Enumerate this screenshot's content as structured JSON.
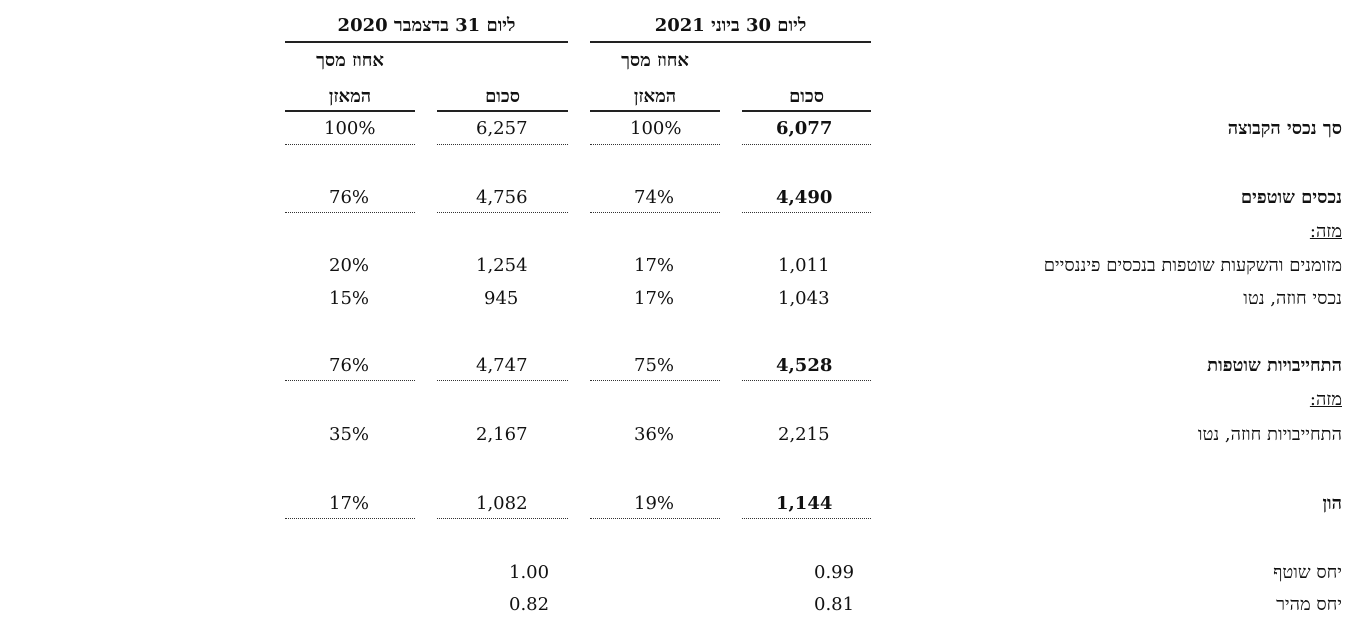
{
  "headers": {
    "period_2021": "ליום 30 ביוני 2021",
    "period_2020": "ליום 31 בדצמבר 2020",
    "amount": "סכום",
    "percent_line1": "אחוז מסך",
    "percent_line2": "המאזן"
  },
  "rows": {
    "total_assets": {
      "label": "סך נכסי הקבוצה",
      "v2021": "6,077",
      "p2021": "100%",
      "v2020": "6,257",
      "p2020": "100%"
    },
    "current_assets": {
      "label": "נכסים שוטפים",
      "v2021": "4,490",
      "p2021": "74%",
      "v2020": "4,756",
      "p2020": "76%"
    },
    "of_which_1": {
      "label": "מזה:"
    },
    "cash": {
      "label": "מזומנים והשקעות שוטפות בנכסים פיננסיים",
      "v2021": "1,011",
      "p2021": "17%",
      "v2020": "1,254",
      "p2020": "20%"
    },
    "contract_assets": {
      "label": "נכסי חוזה, נטו",
      "v2021": "1,043",
      "p2021": "17%",
      "v2020": "945",
      "p2020": "15%"
    },
    "current_liabilities": {
      "label": "התחייבויות שוטפות",
      "v2021": "4,528",
      "p2021": "75%",
      "v2020": "4,747",
      "p2020": "76%"
    },
    "of_which_2": {
      "label": "מזה:"
    },
    "contract_liabilities": {
      "label": "התחייבויות חוזה, נטו",
      "v2021": "2,215",
      "p2021": "36%",
      "v2020": "2,167",
      "p2020": "35%"
    },
    "equity": {
      "label": "הון",
      "v2021": "1,144",
      "p2021": "19%",
      "v2020": "1,082",
      "p2020": "17%"
    },
    "current_ratio": {
      "label": "יחס שוטף",
      "v2021": "0.99",
      "v2020": "1.00"
    },
    "quick_ratio": {
      "label": "יחס מהיר",
      "v2021": "0.81",
      "v2020": "0.82"
    }
  }
}
